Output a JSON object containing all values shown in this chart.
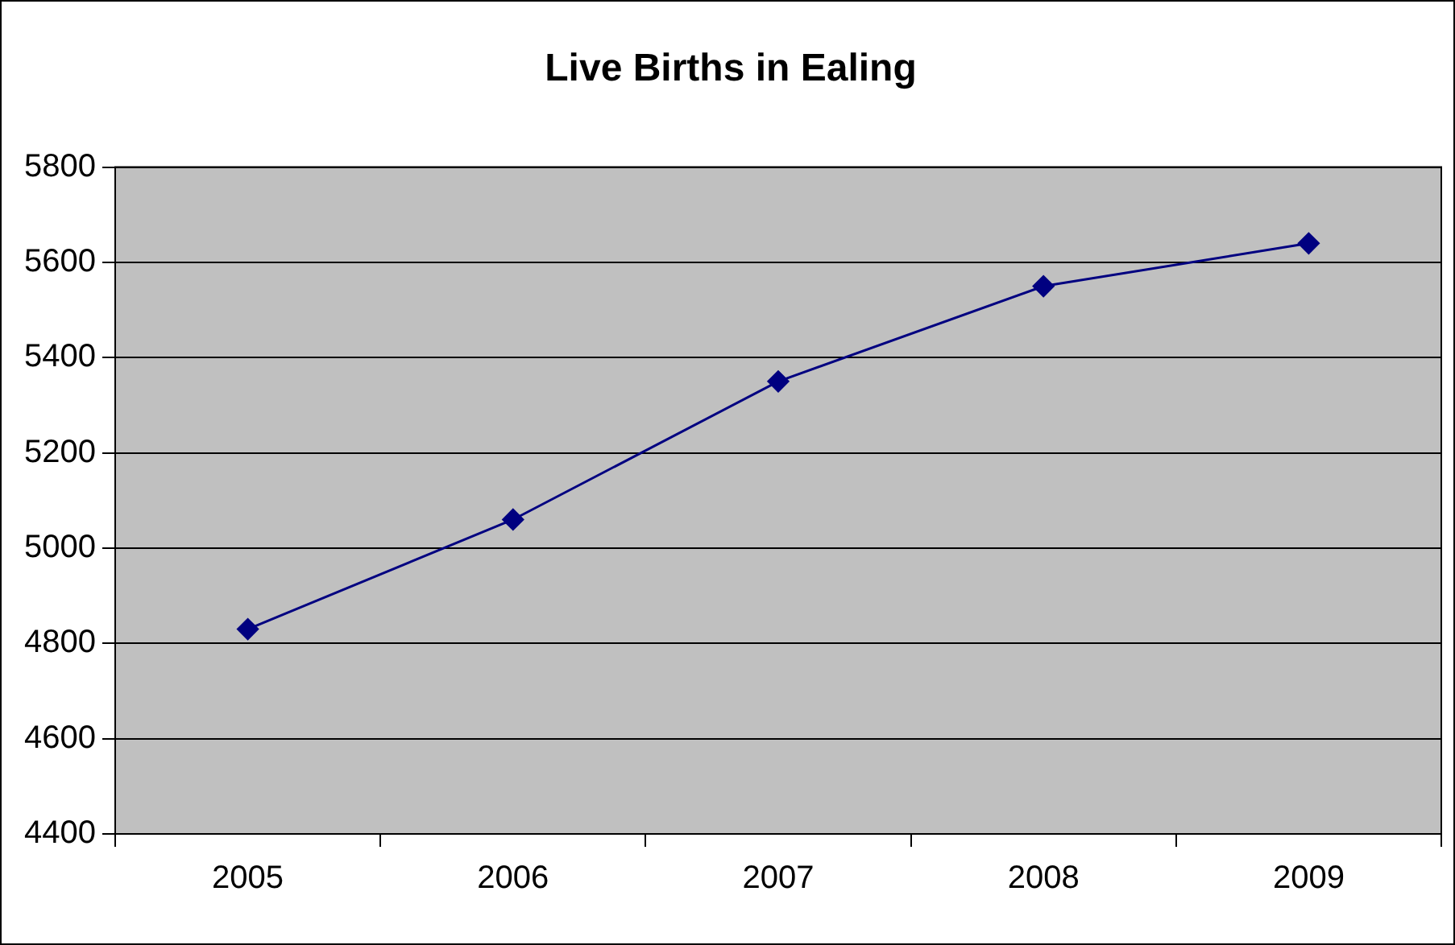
{
  "chart_data": {
    "type": "line",
    "title": "Live Births in Ealing",
    "categories": [
      "2005",
      "2006",
      "2007",
      "2008",
      "2009"
    ],
    "series": [
      {
        "color": "#000080",
        "values": [
          4830,
          5060,
          5350,
          5550,
          5640
        ]
      }
    ],
    "ylim": [
      4400,
      5800
    ],
    "yticks": [
      4400,
      4600,
      4800,
      5000,
      5200,
      5400,
      5600,
      5800
    ],
    "grid": "y",
    "legend": false,
    "marker": "diamond",
    "line_style": "solid"
  }
}
